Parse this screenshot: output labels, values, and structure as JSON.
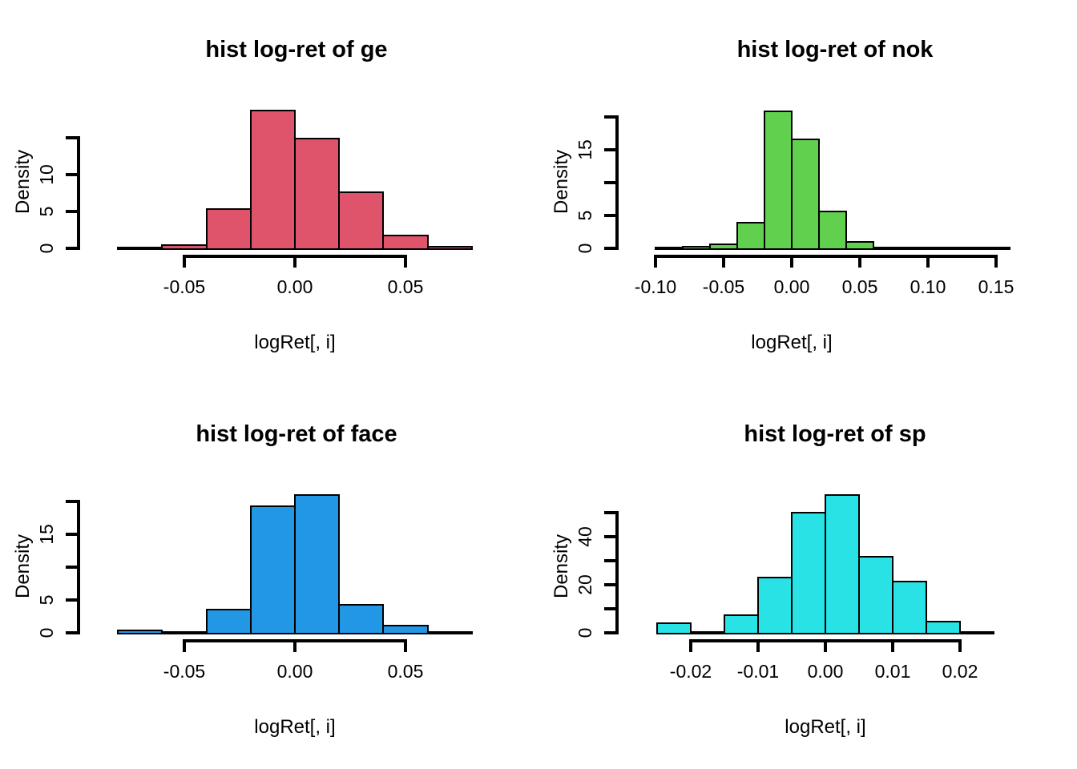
{
  "figure": {
    "background": "#ffffff",
    "axis_color": "#000000"
  },
  "chart_data": [
    {
      "type": "bar",
      "subtype": "histogram",
      "title": "hist log-ret of ge",
      "xlabel": "logRet[, i]",
      "ylabel": "Density",
      "bar_color": "#DF536B",
      "bin_start": -0.08,
      "bin_width": 0.02,
      "densities": [
        0.2,
        0.5,
        5.4,
        18.8,
        15.0,
        7.7,
        1.8,
        0.3
      ],
      "x_ticks": [
        -0.05,
        0.0,
        0.05
      ],
      "x_tick_labels": [
        "-0.05",
        "0.00",
        "0.05"
      ],
      "y_ticks": [
        0,
        5,
        10,
        15
      ],
      "y_tick_labels": [
        "0",
        "5",
        "10",
        ""
      ],
      "ylim": [
        0,
        18.8
      ],
      "grid": false,
      "legend": "none"
    },
    {
      "type": "bar",
      "subtype": "histogram",
      "title": "hist log-ret of nok",
      "xlabel": "logRet[, i]",
      "ylabel": "Density",
      "bar_color": "#61D04F",
      "bin_start": -0.1,
      "bin_width": 0.02,
      "densities": [
        0.15,
        0.4,
        0.7,
        4.0,
        21.0,
        16.7,
        5.7,
        1.1,
        0.2,
        0.2,
        0.3,
        0.1,
        0.3
      ],
      "x_ticks": [
        -0.1,
        -0.05,
        0.0,
        0.05,
        0.1,
        0.15
      ],
      "x_tick_labels": [
        "-0.10",
        "-0.05",
        "0.00",
        "0.05",
        "0.10",
        "0.15"
      ],
      "y_ticks": [
        0,
        5,
        10,
        15,
        20
      ],
      "y_tick_labels": [
        "0",
        "5",
        "",
        "15",
        ""
      ],
      "ylim": [
        0,
        21.0
      ],
      "grid": false,
      "legend": "none"
    },
    {
      "type": "bar",
      "subtype": "histogram",
      "title": "hist log-ret of face",
      "xlabel": "logRet[, i]",
      "ylabel": "Density",
      "bar_color": "#2297E6",
      "bin_start": -0.08,
      "bin_width": 0.02,
      "densities": [
        0.5,
        0.3,
        3.7,
        19.3,
        21.0,
        4.4,
        1.2,
        0.15
      ],
      "x_ticks": [
        -0.05,
        0.0,
        0.05
      ],
      "x_tick_labels": [
        "-0.05",
        "0.00",
        "0.05"
      ],
      "y_ticks": [
        0,
        5,
        10,
        15,
        20
      ],
      "y_tick_labels": [
        "0",
        "5",
        "",
        "15",
        ""
      ],
      "ylim": [
        0,
        21.0
      ],
      "grid": false,
      "legend": "none"
    },
    {
      "type": "bar",
      "subtype": "histogram",
      "title": "hist log-ret of sp",
      "xlabel": "logRet[, i]",
      "ylabel": "Density",
      "bar_color": "#28E2E5",
      "bin_start": -0.025,
      "bin_width": 0.005,
      "densities": [
        4.2,
        0.5,
        7.8,
        23.2,
        50.3,
        57.8,
        31.9,
        21.6,
        5.0,
        0.4
      ],
      "x_ticks": [
        -0.02,
        -0.01,
        0.0,
        0.01,
        0.02
      ],
      "x_tick_labels": [
        "-0.02",
        "-0.01",
        "0.00",
        "0.01",
        "0.02"
      ],
      "y_ticks": [
        0,
        10,
        20,
        30,
        40,
        50
      ],
      "y_tick_labels": [
        "0",
        "",
        "20",
        "",
        "40",
        ""
      ],
      "ylim": [
        0,
        57.8
      ],
      "grid": false,
      "legend": "none"
    }
  ]
}
